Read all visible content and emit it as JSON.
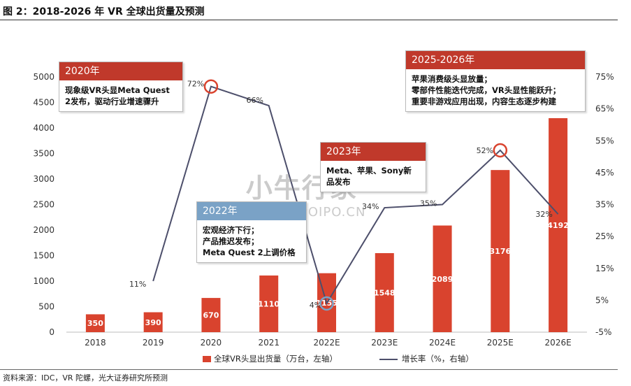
{
  "figure_title": "图 2：2018-2026 年 VR 全球出货量及预测",
  "source_note": "资料来源：IDC，VR 陀螺，光大证券研究所预测",
  "watermark": {
    "line1": "小牛行家",
    "line2": "行业报告 IPOIPO.CN"
  },
  "colors": {
    "bar": "#d9432e",
    "line": "#4d4f6b",
    "marker_2020": "#d9432e",
    "marker_2022": "#7aa2c6",
    "marker_2025": "#d9432e"
  },
  "legend": {
    "bar_label": "全球VR头显出货量（万台，左轴）",
    "line_label": "增长率（%，右轴）"
  },
  "callouts": [
    {
      "id": "c2020",
      "style": "red",
      "title": "2020年",
      "lines": [
        "现象级VR头显Meta Quest",
        "2发布，驱动行业增速骤升"
      ]
    },
    {
      "id": "c2022",
      "style": "blue",
      "title": "2022年",
      "lines": [
        "宏观经济下行；",
        "产品推迟发布；",
        "Meta Quest 2上调价格"
      ]
    },
    {
      "id": "c2023",
      "style": "red",
      "title": "2023年",
      "lines": [
        "Meta、苹果、Sony新",
        "品发布"
      ]
    },
    {
      "id": "c2025",
      "style": "red",
      "title": "2025-2026年",
      "lines": [
        "苹果消费级头显放量；",
        "零部件性能迭代完成，VR头显性能跃升；",
        "重要非游戏应用出现，内容生态逐步构建"
      ]
    }
  ],
  "chart_data": {
    "type": "bar",
    "categories": [
      "2018",
      "2019",
      "2020",
      "2021",
      "2022E",
      "2023E",
      "2024E",
      "2025E",
      "2026E"
    ],
    "series": [
      {
        "name": "全球VR头显出货量（万台，左轴）",
        "type": "bar",
        "axis": "left",
        "values": [
          350,
          390,
          670,
          1110,
          1155,
          1548,
          2089,
          3176,
          4192
        ],
        "labels": [
          "350",
          "390",
          "670",
          "1110",
          "1155",
          "1548",
          "2089",
          "3176",
          "4192"
        ]
      },
      {
        "name": "增长率（%，右轴）",
        "type": "line",
        "axis": "right",
        "values": [
          null,
          11,
          72,
          66,
          4,
          34,
          35,
          52,
          32
        ],
        "labels": [
          "",
          "11%",
          "72%",
          "66%",
          "4%",
          "34%",
          "35%",
          "52%",
          "32%"
        ]
      }
    ],
    "left_axis": {
      "min": 0,
      "max": 5000,
      "step": 500,
      "ticks": [
        "0",
        "500",
        "1000",
        "1500",
        "2000",
        "2500",
        "3000",
        "3500",
        "4000",
        "4500",
        "5000"
      ]
    },
    "right_axis": {
      "min": -5,
      "max": 75,
      "step": 10,
      "ticks": [
        "-5%",
        "5%",
        "15%",
        "25%",
        "35%",
        "45%",
        "55%",
        "65%",
        "75%"
      ]
    },
    "highlighted_points": [
      "2020",
      "2022E",
      "2025E"
    ],
    "grid": false,
    "legend_position": "bottom"
  }
}
